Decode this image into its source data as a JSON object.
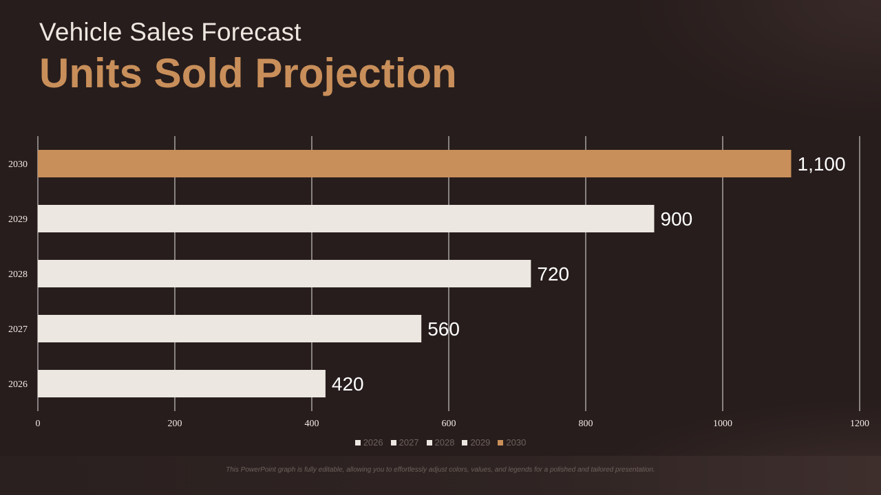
{
  "header": {
    "subtitle": "Vehicle Sales Forecast",
    "title": "Units Sold Projection"
  },
  "footnote": "This PowerPoint graph is fully editable, allowing you to effortlessly adjust colors, values, and legends for a polished and tailored presentation.",
  "colors": {
    "background": "#271d1c",
    "accent": "#c98f5a",
    "bar": "#ece7e0",
    "grid": "#ffffff",
    "label": "#ffffff"
  },
  "chart_data": {
    "type": "bar",
    "orientation": "horizontal",
    "categories": [
      "2026",
      "2027",
      "2028",
      "2029",
      "2030"
    ],
    "values": [
      420,
      560,
      720,
      900,
      1100
    ],
    "value_labels": [
      "420",
      "560",
      "720",
      "900",
      "1,100"
    ],
    "highlight": "2030",
    "xlim": [
      0,
      1200
    ],
    "xticks": [
      "0",
      "200",
      "400",
      "600",
      "800",
      "1000",
      "1200"
    ],
    "grid": true,
    "legend": [
      "2026",
      "2027",
      "2028",
      "2029",
      "2030"
    ],
    "legend_position": "bottom"
  }
}
